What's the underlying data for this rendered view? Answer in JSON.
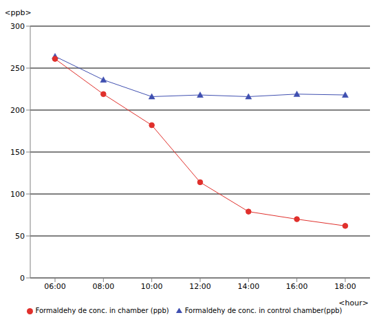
{
  "chart_data": {
    "type": "line",
    "x_label": "<hour>",
    "y_label": "<ppb>",
    "categories": [
      "06:00",
      "08:00",
      "10:00",
      "12:00",
      "14:00",
      "16:00",
      "18:00"
    ],
    "series": [
      {
        "name": "Formaldehy de conc. in control chamber(ppb)",
        "color": "#3f4fb0",
        "marker": "triangle",
        "values": [
          264,
          236,
          216,
          218,
          216,
          219,
          218
        ]
      },
      {
        "name": "Formaldehy de conc. in chamber (ppb)",
        "color": "#e0302c",
        "marker": "circle",
        "values": [
          261,
          219,
          182,
          114,
          79,
          70,
          62
        ]
      }
    ],
    "ylim": [
      0,
      300
    ],
    "yticks": [
      0,
      50,
      100,
      150,
      200,
      250,
      300
    ],
    "grid": true,
    "legend": "bottom"
  }
}
